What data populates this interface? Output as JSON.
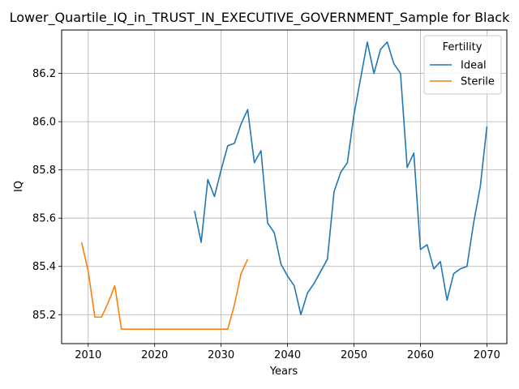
{
  "chart_data": {
    "type": "line",
    "title": "Lower_Quartile_IQ_in_TRUST_IN_EXECUTIVE_GOVERNMENT_Sample for Black",
    "xlabel": "Years",
    "ylabel": "IQ",
    "xlim": [
      2006,
      2073
    ],
    "ylim": [
      85.08,
      86.38
    ],
    "xticks": [
      2010,
      2020,
      2030,
      2040,
      2050,
      2060,
      2070
    ],
    "yticks": [
      85.2,
      85.4,
      85.6,
      85.8,
      86.0,
      86.2
    ],
    "grid": true,
    "legend": {
      "title": "Fertility",
      "placement": "top-right"
    },
    "series": [
      {
        "name": "Ideal",
        "color": "#1f77b4",
        "x": [
          2026,
          2027,
          2028,
          2029,
          2030,
          2031,
          2032,
          2033,
          2034,
          2035,
          2036,
          2037,
          2038,
          2039,
          2040,
          2041,
          2042,
          2043,
          2044,
          2045,
          2046,
          2047,
          2048,
          2049,
          2050,
          2051,
          2052,
          2053,
          2054,
          2055,
          2056,
          2057,
          2058,
          2059,
          2060,
          2061,
          2062,
          2063,
          2064,
          2065,
          2066,
          2067,
          2068,
          2069,
          2070
        ],
        "values": [
          85.63,
          85.5,
          85.76,
          85.69,
          85.8,
          85.9,
          85.91,
          85.99,
          86.05,
          85.83,
          85.88,
          85.58,
          85.54,
          85.41,
          85.36,
          85.32,
          85.2,
          85.29,
          85.33,
          85.38,
          85.43,
          85.71,
          85.79,
          85.83,
          86.03,
          86.18,
          86.33,
          86.2,
          86.3,
          86.33,
          86.24,
          86.2,
          85.81,
          85.87,
          85.47,
          85.49,
          85.39,
          85.42,
          85.26,
          85.37,
          85.39,
          85.4,
          85.58,
          85.73,
          85.98
        ]
      },
      {
        "name": "Sterile",
        "color": "#ff7f0e",
        "x": [
          2009,
          2010,
          2011,
          2012,
          2013,
          2014,
          2015,
          2016,
          2017,
          2018,
          2019,
          2020,
          2021,
          2022,
          2023,
          2024,
          2025,
          2026,
          2027,
          2028,
          2029,
          2030,
          2031,
          2032,
          2033,
          2034
        ],
        "values": [
          85.5,
          85.38,
          85.19,
          85.19,
          85.25,
          85.32,
          85.14,
          85.14,
          85.14,
          85.14,
          85.14,
          85.14,
          85.14,
          85.14,
          85.14,
          85.14,
          85.14,
          85.14,
          85.14,
          85.14,
          85.14,
          85.14,
          85.14,
          85.24,
          85.37,
          85.43
        ]
      }
    ]
  }
}
